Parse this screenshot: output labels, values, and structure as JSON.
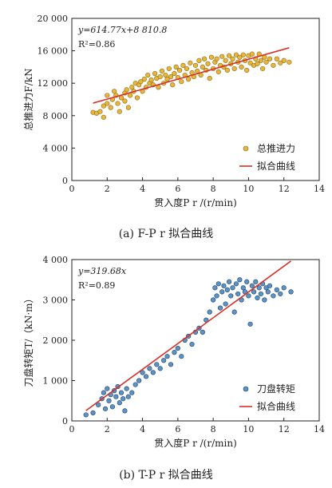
{
  "chart_data": [
    {
      "type": "scatter",
      "equation": "y=614.77x+8 810.8",
      "r2": "R²=0.86",
      "xlabel": "贯入度P r /(r/min)",
      "ylabel": "总推进力F/kN",
      "xlim": [
        0,
        14
      ],
      "ylim": [
        0,
        20000
      ],
      "xticks": [
        "0",
        "2",
        "4",
        "6",
        "8",
        "10",
        "12",
        "14"
      ],
      "yticks": [
        "0",
        "4 000",
        "8 000",
        "12 000",
        "16 000",
        "20 000"
      ],
      "legend": [
        "总推进力",
        "拟合曲线"
      ],
      "legend_position": "bottom-right",
      "caption": "(a) F-P r 拟合曲线",
      "colors": {
        "points": "#e8b63a",
        "point_edge": "#8a6a12",
        "fit": "#d9312a"
      },
      "fit": {
        "slope": 614.77,
        "intercept": 8810.8,
        "x_range": [
          1.2,
          12.3
        ]
      },
      "series": [
        {
          "name": "总推进力",
          "points": [
            [
              1.2,
              8400
            ],
            [
              1.4,
              8300
            ],
            [
              1.6,
              8500
            ],
            [
              1.8,
              7800
            ],
            [
              1.8,
              9200
            ],
            [
              2.0,
              9500
            ],
            [
              2.0,
              10500
            ],
            [
              2.2,
              9000
            ],
            [
              2.3,
              10000
            ],
            [
              2.4,
              11000
            ],
            [
              2.5,
              10500
            ],
            [
              2.6,
              9500
            ],
            [
              2.7,
              8500
            ],
            [
              2.8,
              10200
            ],
            [
              3.0,
              9800
            ],
            [
              3.0,
              10800
            ],
            [
              3.1,
              11200
            ],
            [
              3.2,
              9000
            ],
            [
              3.3,
              10500
            ],
            [
              3.4,
              11500
            ],
            [
              3.5,
              11000
            ],
            [
              3.6,
              12000
            ],
            [
              3.7,
              10200
            ],
            [
              3.8,
              11800
            ],
            [
              3.9,
              12200
            ],
            [
              4.0,
              11000
            ],
            [
              4.1,
              12500
            ],
            [
              4.2,
              11500
            ],
            [
              4.3,
              13000
            ],
            [
              4.4,
              12000
            ],
            [
              4.5,
              12400
            ],
            [
              4.6,
              11800
            ],
            [
              4.7,
              13200
            ],
            [
              4.8,
              12600
            ],
            [
              4.9,
              11500
            ],
            [
              5.0,
              12800
            ],
            [
              5.1,
              13500
            ],
            [
              5.2,
              12000
            ],
            [
              5.3,
              13000
            ],
            [
              5.4,
              12500
            ],
            [
              5.5,
              13800
            ],
            [
              5.6,
              12800
            ],
            [
              5.7,
              11800
            ],
            [
              5.8,
              13200
            ],
            [
              5.9,
              14000
            ],
            [
              6.0,
              12700
            ],
            [
              6.1,
              13600
            ],
            [
              6.2,
              12200
            ],
            [
              6.3,
              14200
            ],
            [
              6.4,
              13000
            ],
            [
              6.5,
              13800
            ],
            [
              6.6,
              12500
            ],
            [
              6.7,
              14500
            ],
            [
              6.8,
              13300
            ],
            [
              6.9,
              12800
            ],
            [
              7.0,
              14200
            ],
            [
              7.1,
              13500
            ],
            [
              7.2,
              14800
            ],
            [
              7.3,
              13000
            ],
            [
              7.4,
              14000
            ],
            [
              7.5,
              15000
            ],
            [
              7.6,
              13600
            ],
            [
              7.7,
              14400
            ],
            [
              7.8,
              12600
            ],
            [
              7.9,
              15200
            ],
            [
              8.0,
              13800
            ],
            [
              8.1,
              14600
            ],
            [
              8.2,
              15000
            ],
            [
              8.3,
              13400
            ],
            [
              8.4,
              14200
            ],
            [
              8.5,
              15300
            ],
            [
              8.6,
              14000
            ],
            [
              8.7,
              14800
            ],
            [
              8.8,
              13600
            ],
            [
              8.9,
              15400
            ],
            [
              9.0,
              14400
            ],
            [
              9.1,
              15000
            ],
            [
              9.2,
              13800
            ],
            [
              9.3,
              15500
            ],
            [
              9.4,
              14600
            ],
            [
              9.5,
              15200
            ],
            [
              9.6,
              14000
            ],
            [
              9.7,
              15500
            ],
            [
              9.8,
              14800
            ],
            [
              9.9,
              13600
            ],
            [
              10.0,
              15400
            ],
            [
              10.1,
              14500
            ],
            [
              10.2,
              15600
            ],
            [
              10.3,
              14200
            ],
            [
              10.4,
              15000
            ],
            [
              10.5,
              14400
            ],
            [
              10.6,
              15600
            ],
            [
              10.7,
              14800
            ],
            [
              10.8,
              13800
            ],
            [
              10.9,
              15200
            ],
            [
              11.0,
              14600
            ],
            [
              11.2,
              15000
            ],
            [
              11.4,
              14200
            ],
            [
              11.6,
              15000
            ],
            [
              11.8,
              14500
            ],
            [
              12.0,
              14800
            ],
            [
              12.3,
              14600
            ]
          ]
        }
      ]
    },
    {
      "type": "scatter",
      "equation": "y=319.68x",
      "r2": "R²=0.89",
      "xlabel": "贯入度P r /(r/min)",
      "ylabel": "刀盘转矩T/（kN·m）",
      "xlim": [
        0,
        14
      ],
      "ylim": [
        0,
        4000
      ],
      "xticks": [
        "0",
        "2",
        "4",
        "6",
        "8",
        "10",
        "12",
        "14"
      ],
      "yticks": [
        "0",
        "1 000",
        "2 000",
        "3 000",
        "4 000"
      ],
      "legend": [
        "刀盘转矩",
        "拟合曲线"
      ],
      "legend_position": "bottom-right",
      "caption": "(b) T-P r 拟合曲线",
      "colors": {
        "points": "#5b93c7",
        "point_edge": "#1e3f66",
        "fit": "#d9312a"
      },
      "fit": {
        "slope": 319.68,
        "intercept": 0,
        "x_range": [
          0.8,
          12.4
        ]
      },
      "series": [
        {
          "name": "刀盘转矩",
          "points": [
            [
              0.8,
              150
            ],
            [
              1.2,
              200
            ],
            [
              1.5,
              400
            ],
            [
              1.7,
              550
            ],
            [
              1.8,
              700
            ],
            [
              1.9,
              300
            ],
            [
              2.0,
              800
            ],
            [
              2.1,
              500
            ],
            [
              2.2,
              650
            ],
            [
              2.3,
              350
            ],
            [
              2.4,
              750
            ],
            [
              2.5,
              600
            ],
            [
              2.6,
              850
            ],
            [
              2.7,
              450
            ],
            [
              2.8,
              700
            ],
            [
              2.9,
              550
            ],
            [
              3.0,
              250
            ],
            [
              3.1,
              800
            ],
            [
              3.2,
              600
            ],
            [
              3.4,
              700
            ],
            [
              3.6,
              900
            ],
            [
              3.8,
              1000
            ],
            [
              4.0,
              1200
            ],
            [
              4.2,
              1100
            ],
            [
              4.4,
              1300
            ],
            [
              4.6,
              1200
            ],
            [
              4.8,
              1400
            ],
            [
              5.0,
              1300
            ],
            [
              5.2,
              1500
            ],
            [
              5.4,
              1600
            ],
            [
              5.6,
              1400
            ],
            [
              5.8,
              1700
            ],
            [
              6.0,
              1800
            ],
            [
              6.2,
              1600
            ],
            [
              6.4,
              2000
            ],
            [
              6.6,
              2100
            ],
            [
              6.8,
              1900
            ],
            [
              7.0,
              2200
            ],
            [
              7.2,
              2300
            ],
            [
              7.4,
              2200
            ],
            [
              7.6,
              2500
            ],
            [
              7.8,
              2700
            ],
            [
              8.0,
              3000
            ],
            [
              8.1,
              3300
            ],
            [
              8.2,
              3100
            ],
            [
              8.3,
              3400
            ],
            [
              8.4,
              2800
            ],
            [
              8.5,
              3200
            ],
            [
              8.6,
              3350
            ],
            [
              8.7,
              2900
            ],
            [
              8.8,
              3250
            ],
            [
              8.9,
              3450
            ],
            [
              9.0,
              3100
            ],
            [
              9.1,
              3300
            ],
            [
              9.2,
              2700
            ],
            [
              9.3,
              3400
            ],
            [
              9.4,
              3150
            ],
            [
              9.5,
              3500
            ],
            [
              9.6,
              3000
            ],
            [
              9.7,
              3300
            ],
            [
              9.8,
              3200
            ],
            [
              9.9,
              3450
            ],
            [
              10.0,
              3100
            ],
            [
              10.1,
              2400
            ],
            [
              10.2,
              3350
            ],
            [
              10.3,
              3200
            ],
            [
              10.4,
              3450
            ],
            [
              10.5,
              3050
            ],
            [
              10.6,
              3300
            ],
            [
              10.7,
              3150
            ],
            [
              10.8,
              3400
            ],
            [
              10.9,
              3000
            ],
            [
              11.0,
              3300
            ],
            [
              11.1,
              3200
            ],
            [
              11.2,
              3350
            ],
            [
              11.4,
              3100
            ],
            [
              11.6,
              3250
            ],
            [
              11.8,
              3150
            ],
            [
              12.0,
              3300
            ],
            [
              12.4,
              3200
            ]
          ]
        }
      ]
    }
  ]
}
